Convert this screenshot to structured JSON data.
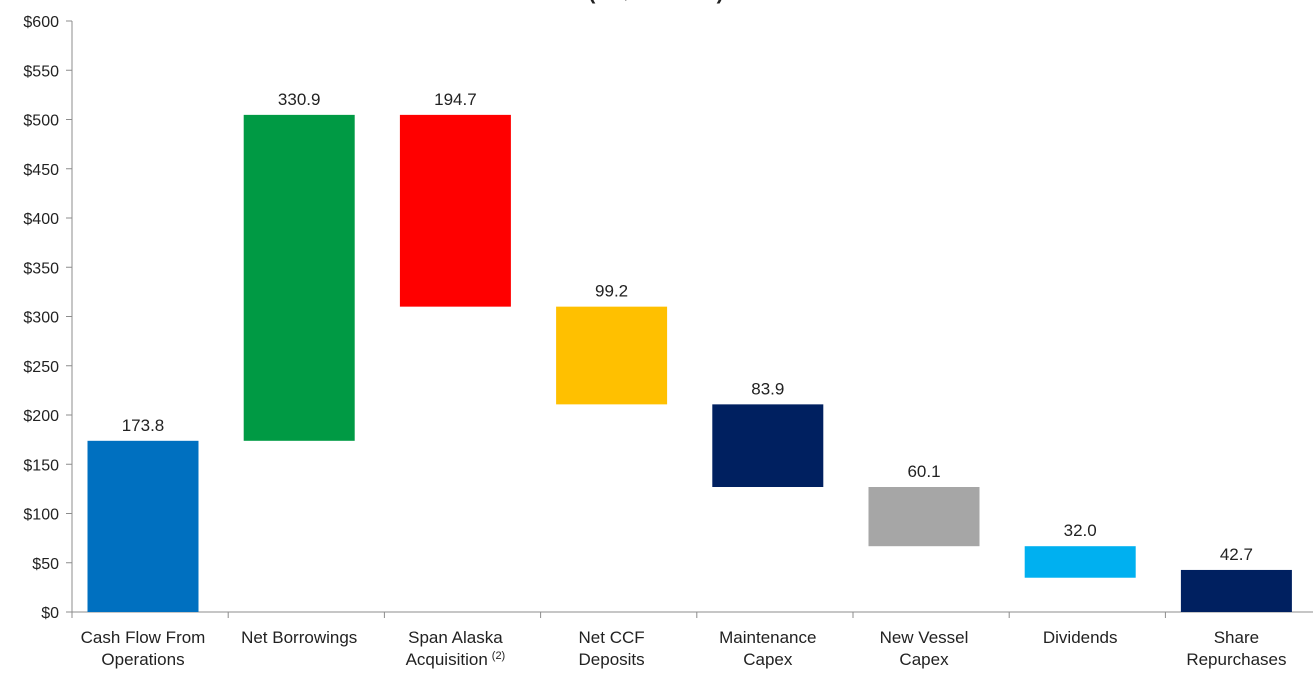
{
  "chart_data": {
    "type": "bar",
    "subtype": "waterfall",
    "title": "(In $ millions)",
    "xlabel": "",
    "ylabel": "",
    "ylim": [
      0,
      600
    ],
    "yticks": [
      0,
      50,
      100,
      150,
      200,
      250,
      300,
      350,
      400,
      450,
      500,
      550,
      600
    ],
    "ytick_labels": [
      "$0",
      "$50",
      "$100",
      "$150",
      "$200",
      "$250",
      "$300",
      "$350",
      "$400",
      "$450",
      "$500",
      "$550",
      "$600"
    ],
    "grid": false,
    "categories": [
      {
        "lines": [
          "Cash Flow From",
          "Operations"
        ],
        "superscript": ""
      },
      {
        "lines": [
          "Net Borrowings"
        ],
        "superscript": ""
      },
      {
        "lines": [
          "Span Alaska",
          "Acquisition"
        ],
        "superscript": "(2)"
      },
      {
        "lines": [
          "Net CCF",
          "Deposits"
        ],
        "superscript": ""
      },
      {
        "lines": [
          "Maintenance",
          "Capex"
        ],
        "superscript": ""
      },
      {
        "lines": [
          "New Vessel",
          "Capex"
        ],
        "superscript": ""
      },
      {
        "lines": [
          "Dividends"
        ],
        "superscript": ""
      },
      {
        "lines": [
          "Share",
          "Repurchases"
        ],
        "superscript": ""
      }
    ],
    "bars": [
      {
        "value": 173.8,
        "label": "173.8",
        "base": 0,
        "top": 173.8,
        "color": "#0070c0"
      },
      {
        "value": 330.9,
        "label": "330.9",
        "base": 173.8,
        "top": 504.7,
        "color": "#009a44"
      },
      {
        "value": 194.7,
        "label": "194.7",
        "base": 310.0,
        "top": 504.7,
        "color": "#ff0000"
      },
      {
        "value": 99.2,
        "label": "99.2",
        "base": 210.8,
        "top": 310.0,
        "color": "#ffc000"
      },
      {
        "value": 83.9,
        "label": "83.9",
        "base": 126.9,
        "top": 210.8,
        "color": "#002060"
      },
      {
        "value": 60.1,
        "label": "60.1",
        "base": 66.8,
        "top": 126.9,
        "color": "#a6a6a6"
      },
      {
        "value": 32.0,
        "label": "32.0",
        "base": 34.8,
        "top": 66.8,
        "color": "#00b0f0"
      },
      {
        "value": 42.7,
        "label": "42.7",
        "base": 0,
        "top": 42.7,
        "color": "#002060"
      }
    ]
  }
}
